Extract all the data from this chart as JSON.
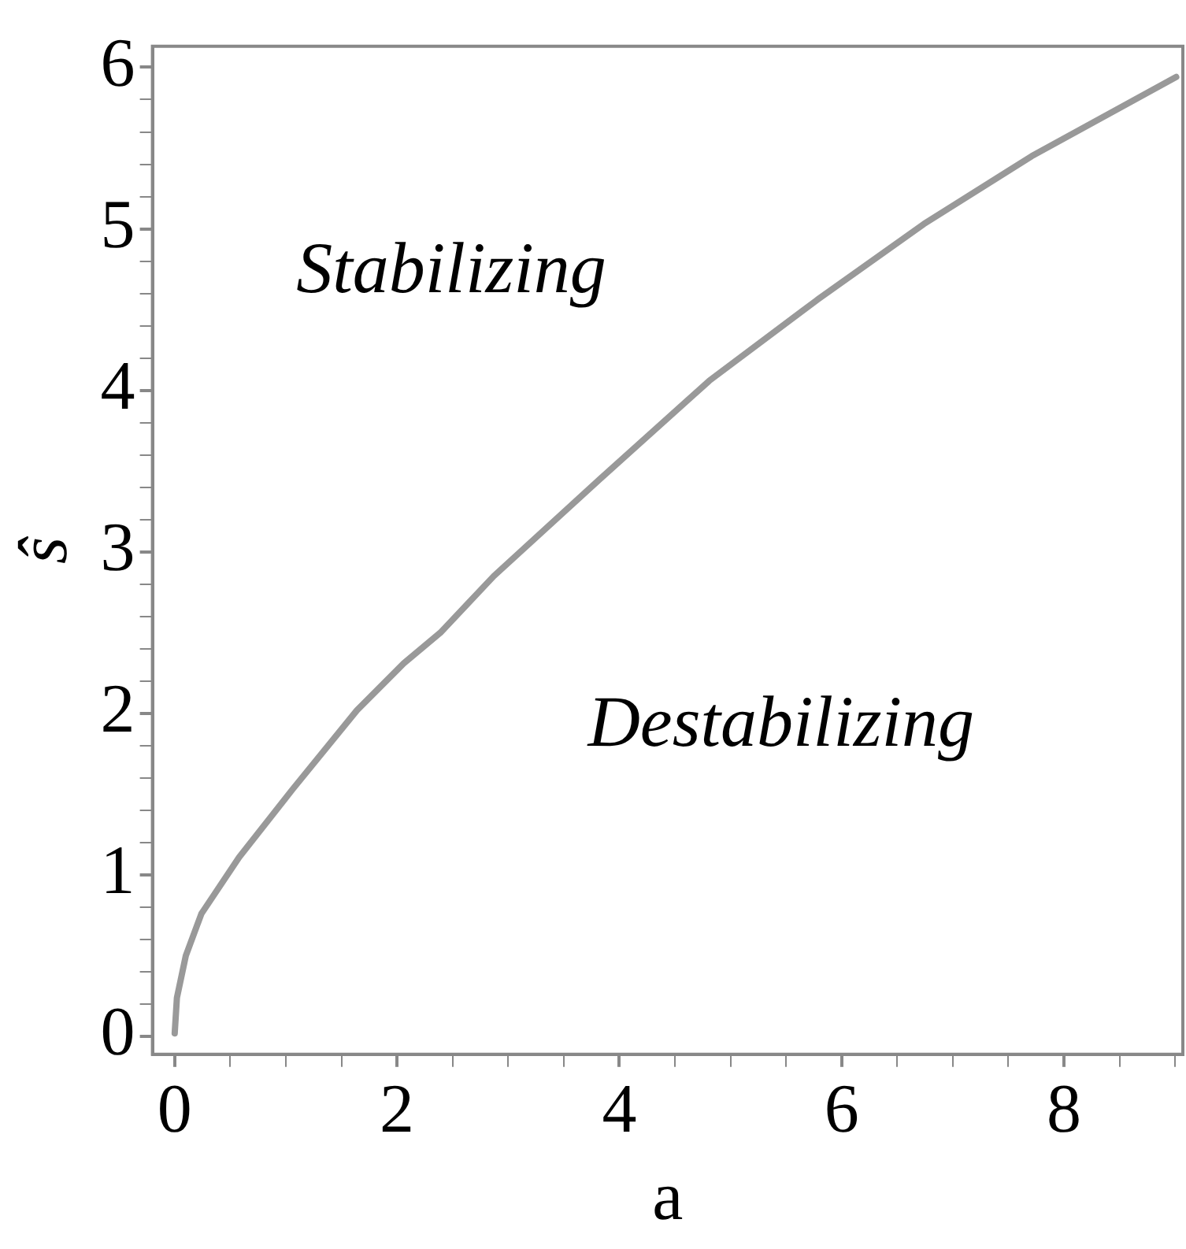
{
  "chart_data": {
    "type": "line",
    "xlabel": "a",
    "ylabel": "ŝ",
    "x": [
      0,
      0.02,
      0.1,
      0.24,
      0.58,
      1.06,
      1.64,
      2.06,
      2.39,
      2.87,
      3.84,
      4.81,
      5.78,
      6.74,
      7.71,
      9.01
    ],
    "series": [
      {
        "color": "#999999",
        "values": [
          0.02,
          0.24,
          0.5,
          0.76,
          1.11,
          1.53,
          2.02,
          2.31,
          2.5,
          2.85,
          3.46,
          4.06,
          4.56,
          5.03,
          5.45,
          5.94
        ]
      }
    ],
    "xlim": [
      -0.2,
      9.07
    ],
    "ylim": [
      -0.11,
      6.13
    ],
    "xticks": [
      0,
      {
        "value": 0.5,
        "label": null
      },
      {
        "value": 1,
        "label": null
      },
      {
        "value": 1.5,
        "label": null
      },
      2,
      {
        "value": 2.5,
        "label": null
      },
      {
        "value": 3,
        "label": null
      },
      {
        "value": 3.5,
        "label": null
      },
      4,
      {
        "value": 4.5,
        "label": null
      },
      {
        "value": 5,
        "label": null
      },
      {
        "value": 5.5,
        "label": null
      },
      6,
      {
        "value": 6.5,
        "label": null
      },
      {
        "value": 7,
        "label": null
      },
      {
        "value": 7.5,
        "label": null
      },
      8,
      {
        "value": 8.5,
        "label": null
      },
      {
        "value": 9,
        "label": null
      }
    ],
    "yticks": [
      0,
      {
        "value": 0.2,
        "label": null
      },
      {
        "value": 0.4,
        "label": null
      },
      {
        "value": 0.6,
        "label": null
      },
      {
        "value": 0.8,
        "label": null
      },
      1,
      {
        "value": 1.2,
        "label": null
      },
      {
        "value": 1.4,
        "label": null
      },
      {
        "value": 1.6,
        "label": null
      },
      {
        "value": 1.8,
        "label": null
      },
      2,
      {
        "value": 2.2,
        "label": null
      },
      {
        "value": 2.4,
        "label": null
      },
      {
        "value": 2.6,
        "label": null
      },
      {
        "value": 2.8,
        "label": null
      },
      3,
      {
        "value": 3.2,
        "label": null
      },
      {
        "value": 3.4,
        "label": null
      },
      {
        "value": 3.6,
        "label": null
      },
      {
        "value": 3.8,
        "label": null
      },
      4,
      {
        "value": 4.2,
        "label": null
      },
      {
        "value": 4.4,
        "label": null
      },
      {
        "value": 4.6,
        "label": null
      },
      {
        "value": 4.8,
        "label": null
      },
      5,
      {
        "value": 5.2,
        "label": null
      },
      {
        "value": 5.4,
        "label": null
      },
      {
        "value": 5.6,
        "label": null
      },
      {
        "value": 5.8,
        "label": null
      },
      6
    ],
    "annotations": [
      "Stabilizing",
      "Destabilizing"
    ],
    "grid": false,
    "legend": false,
    "marker": "none",
    "line_style": "solid"
  }
}
